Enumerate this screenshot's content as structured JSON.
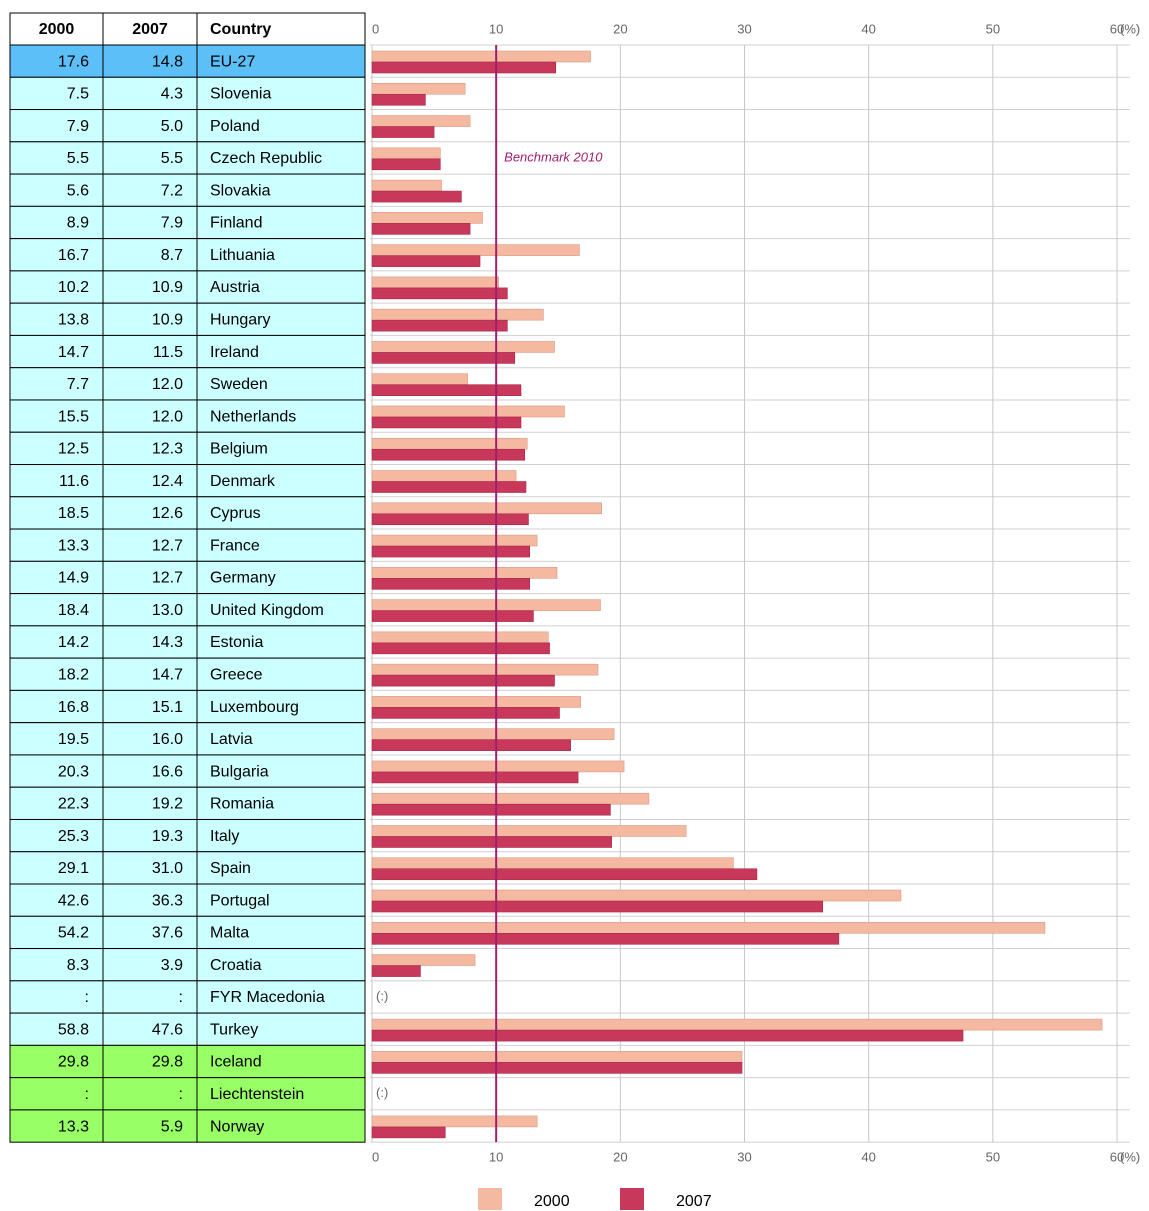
{
  "chart_data": {
    "type": "bar",
    "orientation": "horizontal",
    "categories_title": "Country",
    "categories": [
      "EU-27",
      "Slovenia",
      "Poland",
      "Czech Republic",
      "Slovakia",
      "Finland",
      "Lithuania",
      "Austria",
      "Hungary",
      "Ireland",
      "Sweden",
      "Netherlands",
      "Belgium",
      "Denmark",
      "Cyprus",
      "France",
      "Germany",
      "United Kingdom",
      "Estonia",
      "Greece",
      "Luxembourg",
      "Latvia",
      "Bulgaria",
      "Romania",
      "Italy",
      "Spain",
      "Portugal",
      "Malta",
      "Croatia",
      "FYR Macedonia",
      "Turkey",
      "Iceland",
      "Liechtenstein",
      "Norway"
    ],
    "row_colors": [
      "#5cbff7",
      "#ccffff",
      "#ccffff",
      "#ccffff",
      "#ccffff",
      "#ccffff",
      "#ccffff",
      "#ccffff",
      "#ccffff",
      "#ccffff",
      "#ccffff",
      "#ccffff",
      "#ccffff",
      "#ccffff",
      "#ccffff",
      "#ccffff",
      "#ccffff",
      "#ccffff",
      "#ccffff",
      "#ccffff",
      "#ccffff",
      "#ccffff",
      "#ccffff",
      "#ccffff",
      "#ccffff",
      "#ccffff",
      "#ccffff",
      "#ccffff",
      "#ccffff",
      "#ccffff",
      "#ccffff",
      "#99ff66",
      "#99ff66",
      "#99ff66"
    ],
    "series": [
      {
        "name": "2000",
        "color": "#f5b8a0",
        "values": [
          17.6,
          7.5,
          7.9,
          5.5,
          5.6,
          8.9,
          16.7,
          10.2,
          13.8,
          14.7,
          7.7,
          15.5,
          12.5,
          11.6,
          18.5,
          13.3,
          14.9,
          18.4,
          14.2,
          18.2,
          16.8,
          19.5,
          20.3,
          22.3,
          25.3,
          29.1,
          42.6,
          54.2,
          8.3,
          null,
          58.8,
          29.8,
          null,
          13.3
        ],
        "value_labels": [
          "17.6",
          "7.5",
          "7.9",
          "5.5",
          "5.6",
          "8.9",
          "16.7",
          "10.2",
          "13.8",
          "14.7",
          "7.7",
          "15.5",
          "12.5",
          "11.6",
          "18.5",
          "13.3",
          "14.9",
          "18.4",
          "14.2",
          "18.2",
          "16.8",
          "19.5",
          "20.3",
          "22.3",
          "25.3",
          "29.1",
          "42.6",
          "54.2",
          "8.3",
          ":",
          "58.8",
          "29.8",
          ":",
          "13.3"
        ]
      },
      {
        "name": "2007",
        "color": "#c8385a",
        "values": [
          14.8,
          4.3,
          5.0,
          5.5,
          7.2,
          7.9,
          8.7,
          10.9,
          10.9,
          11.5,
          12.0,
          12.0,
          12.3,
          12.4,
          12.6,
          12.7,
          12.7,
          13.0,
          14.3,
          14.7,
          15.1,
          16.0,
          16.6,
          19.2,
          19.3,
          31.0,
          36.3,
          37.6,
          3.9,
          null,
          47.6,
          29.8,
          null,
          5.9
        ],
        "value_labels": [
          "14.8",
          "4.3",
          "5.0",
          "5.5",
          "7.2",
          "7.9",
          "8.7",
          "10.9",
          "10.9",
          "11.5",
          "12.0",
          "12.0",
          "12.3",
          "12.4",
          "12.6",
          "12.7",
          "12.7",
          "13.0",
          "14.3",
          "14.7",
          "15.1",
          "16.0",
          "16.6",
          "19.2",
          "19.3",
          "31.0",
          "36.3",
          "37.6",
          "3.9",
          ":",
          "47.6",
          "29.8",
          ":",
          "5.9"
        ]
      }
    ],
    "missing_label": "(:)",
    "xlim": [
      0,
      60
    ],
    "xticks": [
      0,
      10,
      20,
      30,
      40,
      50,
      60
    ],
    "xunit": "(%)",
    "annotations": [
      {
        "text": "Benchmark 2010",
        "x": 10,
        "color": "#a01e6e"
      }
    ],
    "grid": true,
    "legend": "bottom"
  }
}
